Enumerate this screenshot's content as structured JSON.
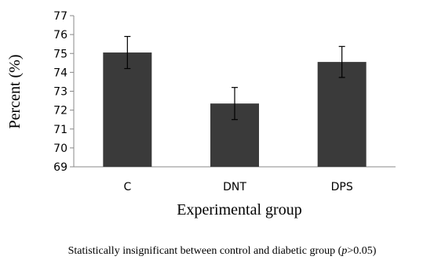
{
  "chart_data": {
    "type": "bar",
    "title": "",
    "xlabel": "Experimental group",
    "ylabel": "Percent (%)",
    "ylim": [
      69,
      77
    ],
    "yticks": [
      69,
      70,
      71,
      72,
      73,
      74,
      75,
      76,
      77
    ],
    "categories": [
      "C",
      "DNT",
      "DPS"
    ],
    "values": [
      75.05,
      72.35,
      74.55
    ],
    "errors": [
      0.85,
      0.85,
      0.82
    ],
    "bar_color": "#3a3a3a",
    "grid": false,
    "legend": "none"
  },
  "caption_parts": [
    "Statistically insignificant between control and diabetic group (",
    "p",
    ">0.05)"
  ]
}
